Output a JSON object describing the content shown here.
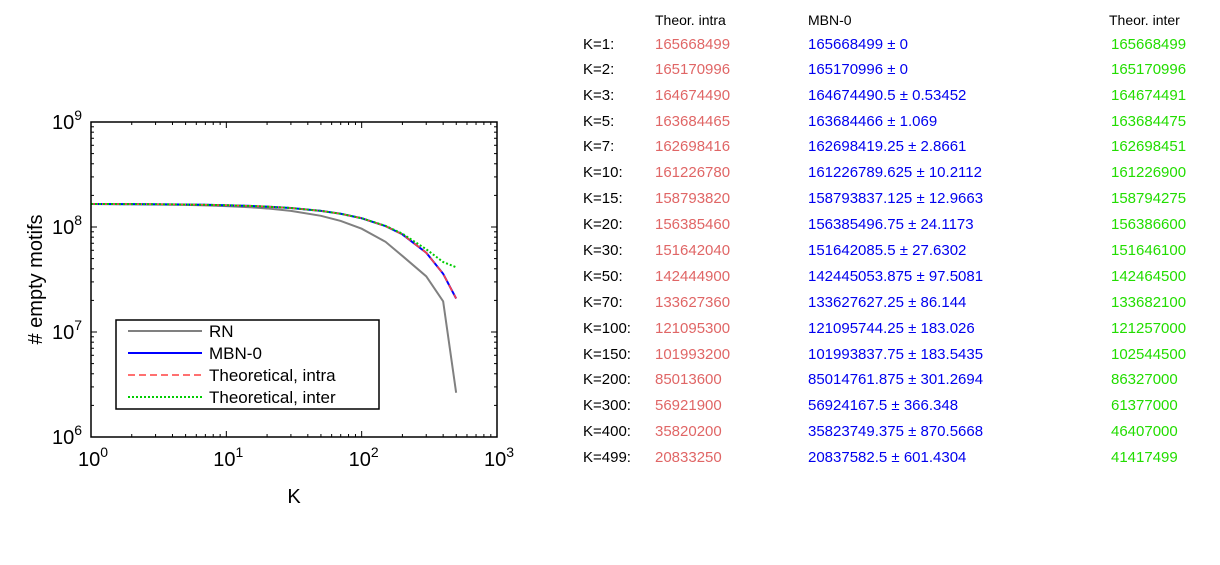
{
  "chart_data": {
    "type": "line",
    "xlabel": "K",
    "ylabel": "# empty motifs",
    "xscale": "log",
    "yscale": "log",
    "xlim": [
      1,
      1000
    ],
    "ylim": [
      1000000,
      1000000000
    ],
    "x_ticks": [
      {
        "value": 1,
        "base": "10",
        "exp": "0"
      },
      {
        "value": 10,
        "base": "10",
        "exp": "1"
      },
      {
        "value": 100,
        "base": "10",
        "exp": "2"
      },
      {
        "value": 1000,
        "base": "10",
        "exp": "3"
      }
    ],
    "y_ticks": [
      {
        "value": 1000000,
        "base": "10",
        "exp": "6"
      },
      {
        "value": 10000000,
        "base": "10",
        "exp": "7"
      },
      {
        "value": 100000000,
        "base": "10",
        "exp": "8"
      },
      {
        "value": 1000000000,
        "base": "10",
        "exp": "9"
      }
    ],
    "grid": false,
    "legend_position": "lower-left",
    "x": [
      1,
      2,
      3,
      5,
      7,
      10,
      15,
      20,
      30,
      50,
      70,
      100,
      150,
      200,
      300,
      400,
      499
    ],
    "series": [
      {
        "name": "RN",
        "color": "#808080",
        "style": "solid",
        "values": [
          165668499,
          164840000,
          164010000,
          162370000,
          160720000,
          158240000,
          154200000,
          150240000,
          142500000,
          127800000,
          114300000,
          96300000,
          72300000,
          53000000,
          33900000,
          19600000,
          2640000
        ]
      },
      {
        "name": "MBN-0",
        "color": "#0000ff",
        "style": "solid",
        "values": [
          165668499,
          165170996,
          164674490.5,
          163684466,
          162698419.25,
          161226789.625,
          158793837.125,
          156385496.75,
          151642085.5,
          142445053.875,
          133627627.25,
          121095744.25,
          101993837.75,
          85014761.875,
          56924167.5,
          35823749.375,
          20837582.5
        ]
      },
      {
        "name": "Theoretical, intra",
        "color": "#ff4040",
        "style": "dashed",
        "values": [
          165668499,
          165170996,
          164674490,
          163684465,
          162698416,
          161226780,
          158793820,
          156385460,
          151642040,
          142444900,
          133627360,
          121095300,
          101993200,
          85013600,
          56921900,
          35820200,
          20833250
        ]
      },
      {
        "name": "Theoretical, inter",
        "color": "#00cc00",
        "style": "dotted",
        "values": [
          165668499,
          165170996,
          164674491,
          163684475,
          162698451,
          161226900,
          158794275,
          156386600,
          151646100,
          142464500,
          133682100,
          121257000,
          102544500,
          86327000,
          61377000,
          46407000,
          41417499
        ]
      }
    ]
  },
  "table": {
    "headers": {
      "intra": "Theor. intra",
      "mbn": "MBN-0",
      "inter": "Theor. inter"
    },
    "rows": [
      {
        "k": "K=1:",
        "intra": "165668499",
        "mbn": "165668499 ± 0",
        "inter": "165668499"
      },
      {
        "k": "K=2:",
        "intra": "165170996",
        "mbn": "165170996 ± 0",
        "inter": "165170996"
      },
      {
        "k": "K=3:",
        "intra": "164674490",
        "mbn": "164674490.5 ± 0.53452",
        "inter": "164674491"
      },
      {
        "k": "K=5:",
        "intra": "163684465",
        "mbn": "163684466 ± 1.069",
        "inter": "163684475"
      },
      {
        "k": "K=7:",
        "intra": "162698416",
        "mbn": "162698419.25 ± 2.8661",
        "inter": "162698451"
      },
      {
        "k": "K=10:",
        "intra": "161226780",
        "mbn": "161226789.625 ± 10.2112",
        "inter": "161226900"
      },
      {
        "k": "K=15:",
        "intra": "158793820",
        "mbn": "158793837.125 ± 12.9663",
        "inter": "158794275"
      },
      {
        "k": "K=20:",
        "intra": "156385460",
        "mbn": "156385496.75 ± 24.1173",
        "inter": "156386600"
      },
      {
        "k": "K=30:",
        "intra": "151642040",
        "mbn": "151642085.5 ± 27.6302",
        "inter": "151646100"
      },
      {
        "k": "K=50:",
        "intra": "142444900",
        "mbn": "142445053.875 ± 97.5081",
        "inter": "142464500"
      },
      {
        "k": "K=70:",
        "intra": "133627360",
        "mbn": "133627627.25 ± 86.144",
        "inter": "133682100"
      },
      {
        "k": "K=100:",
        "intra": "121095300",
        "mbn": "121095744.25 ± 183.026",
        "inter": "121257000"
      },
      {
        "k": "K=150:",
        "intra": "101993200",
        "mbn": "101993837.75 ± 183.5435",
        "inter": "102544500"
      },
      {
        "k": "K=200:",
        "intra": "85013600",
        "mbn": "85014761.875 ± 301.2694",
        "inter": "86327000"
      },
      {
        "k": "K=300:",
        "intra": "56921900",
        "mbn": "56924167.5 ± 366.348",
        "inter": "61377000"
      },
      {
        "k": "K=400:",
        "intra": "35820200",
        "mbn": "35823749.375 ± 870.5668",
        "inter": "46407000"
      },
      {
        "k": "K=499:",
        "intra": "20833250",
        "mbn": "20837582.5 ± 601.4304",
        "inter": "41417499"
      }
    ]
  }
}
